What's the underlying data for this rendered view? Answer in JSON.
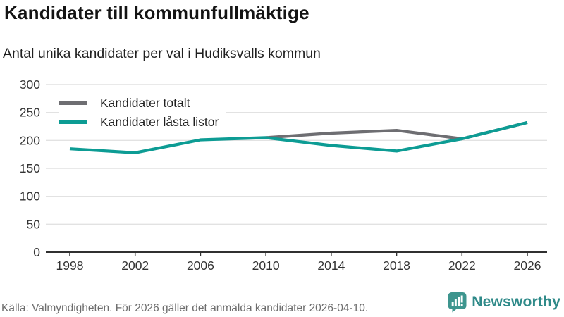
{
  "header": {
    "title": "Kandidater till kommunfullmäktige",
    "subtitle": "Antal unika kandidater per val i Hudiksvalls kommun"
  },
  "chart_data": {
    "type": "line",
    "title": "Kandidater till kommunfullmäktige",
    "subtitle": "Antal unika kandidater per val i Hudiksvalls kommun",
    "x": [
      1998,
      2002,
      2006,
      2010,
      2014,
      2018,
      2022,
      2026
    ],
    "series": [
      {
        "name": "Kandidater totalt",
        "color": "#6e6e72",
        "values": [
          null,
          null,
          null,
          205,
          213,
          218,
          203,
          232
        ]
      },
      {
        "name": "Kandidater låsta listor",
        "color": "#0d9c94",
        "values": [
          185,
          178,
          201,
          205,
          191,
          181,
          203,
          232
        ]
      }
    ],
    "xlabel": "",
    "ylabel": "",
    "ylim": [
      0,
      300
    ],
    "yticks": [
      0,
      50,
      100,
      150,
      200,
      250,
      300
    ],
    "grid": true,
    "legend_position": "top-left",
    "axis_color": "#303030",
    "grid_color": "#e2e2e2",
    "tick_label_color": "#333333"
  },
  "footer": {
    "source": "Källa: Valmyndigheten. För 2026 gäller det anmälda kandidater 2026-04-10.",
    "brand_name": "Newsworthy",
    "brand_color": "#2f8a89"
  }
}
